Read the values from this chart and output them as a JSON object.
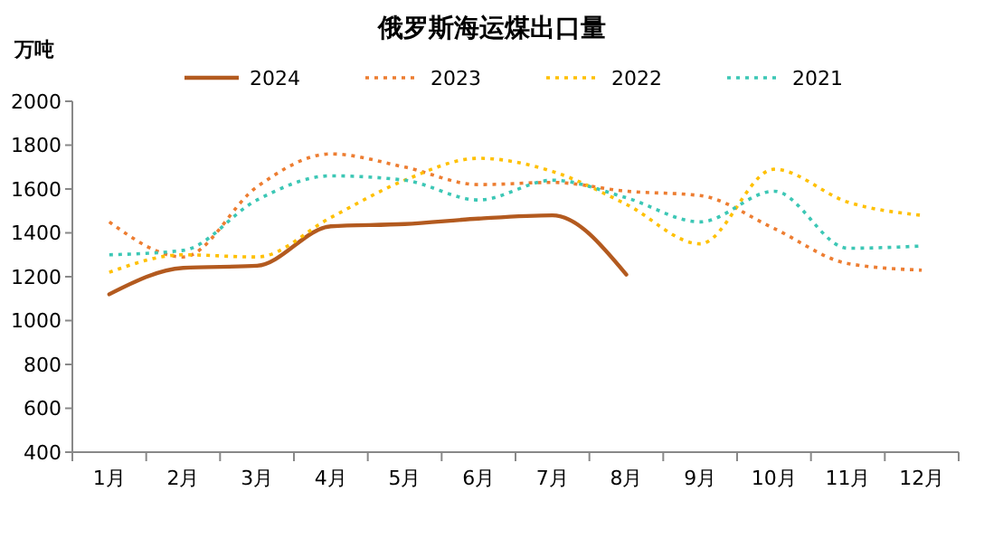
{
  "chart_data": {
    "type": "line",
    "title": "俄罗斯海运煤出口量",
    "ylabel": "万吨",
    "categories": [
      "1月",
      "2月",
      "3月",
      "4月",
      "5月",
      "6月",
      "7月",
      "8月",
      "9月",
      "10月",
      "11月",
      "12月"
    ],
    "ylim": [
      400,
      2000
    ],
    "yticks": [
      400,
      600,
      800,
      1000,
      1200,
      1400,
      1600,
      1800,
      2000
    ],
    "grid": false,
    "legend": "top",
    "marker": "none",
    "series": [
      {
        "name": "2024",
        "color": "#b35a1f",
        "line_style": "solid",
        "values": [
          1120,
          1240,
          1250,
          1430,
          1440,
          1465,
          1480,
          1210,
          null,
          null,
          null,
          null
        ]
      },
      {
        "name": "2023",
        "color": "#ed7d31",
        "line_style": "dotted",
        "values": [
          1450,
          1290,
          1610,
          1760,
          1700,
          1620,
          1630,
          1590,
          1570,
          1420,
          1260,
          1230
        ]
      },
      {
        "name": "2022",
        "color": "#ffc000",
        "line_style": "dotted",
        "values": [
          1220,
          1300,
          1290,
          1470,
          1640,
          1740,
          1680,
          1530,
          1350,
          1690,
          1540,
          1480
        ]
      },
      {
        "name": "2021",
        "color": "#3cc7b5",
        "line_style": "dotted",
        "values": [
          1300,
          1320,
          1550,
          1660,
          1640,
          1550,
          1640,
          1560,
          1450,
          1590,
          1330,
          1340
        ]
      }
    ]
  }
}
